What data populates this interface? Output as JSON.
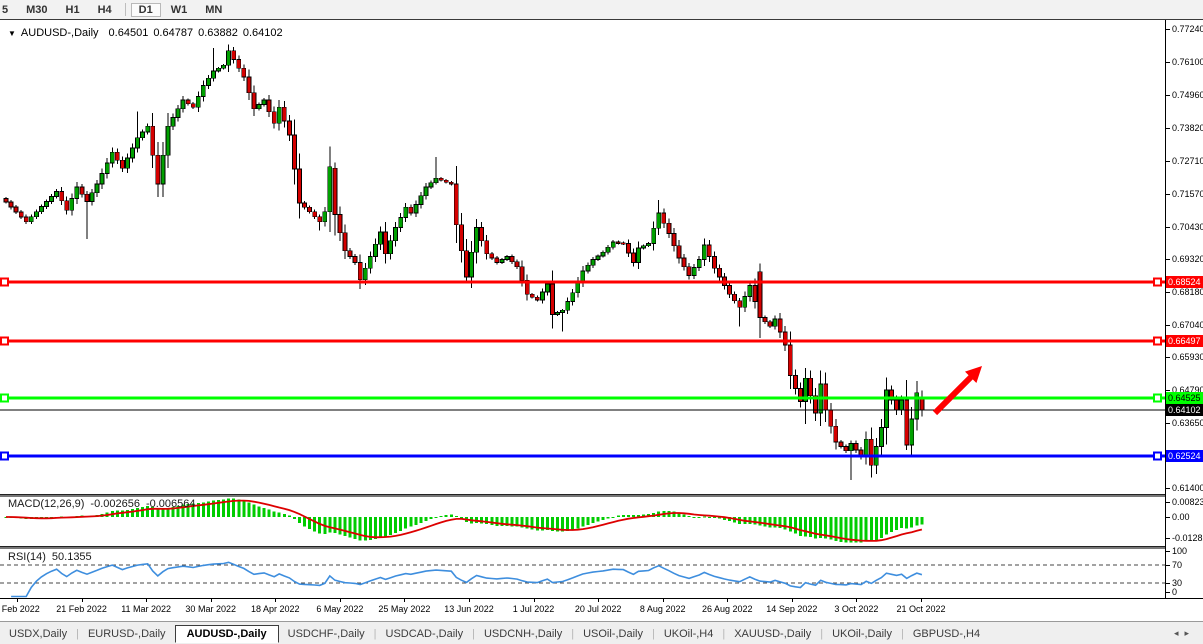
{
  "toolbar": {
    "timeframes": [
      {
        "label": "5",
        "active": false,
        "cut": true
      },
      {
        "label": "M30",
        "active": false
      },
      {
        "label": "H1",
        "active": false
      },
      {
        "label": "H4",
        "active": false
      },
      {
        "label": "D1",
        "active": true
      },
      {
        "label": "W1",
        "active": false
      },
      {
        "label": "MN",
        "active": false
      }
    ]
  },
  "chart": {
    "title_symbol": "AUDUSD-,Daily",
    "ohlc": [
      "0.64501",
      "0.64787",
      "0.63882",
      "0.64102"
    ]
  },
  "indicators": {
    "macd": {
      "label": "MACD(12,26,9)",
      "value1": "-0.002656",
      "value2": "-0.006564",
      "axis_ticks": [
        "0.00823",
        "0.00",
        "-0.01282"
      ]
    },
    "rsi": {
      "label": "RSI(14)",
      "value": "50.1355",
      "axis_ticks": [
        "100",
        "70",
        "30",
        "0"
      ],
      "levels": [
        70,
        30
      ]
    }
  },
  "price_axis": {
    "ticks": [
      "0.77240",
      "0.76100",
      "0.74960",
      "0.73820",
      "0.72710",
      "0.71570",
      "0.70430",
      "0.69320",
      "0.68180",
      "0.67040",
      "0.65930",
      "0.64790",
      "0.63650",
      "0.61400"
    ]
  },
  "date_axis": {
    "labels": [
      "2 Feb 2022",
      "21 Feb 2022",
      "11 Mar 2022",
      "30 Mar 2022",
      "18 Apr 2022",
      "6 May 2022",
      "25 May 2022",
      "13 Jun 2022",
      "1 Jul 2022",
      "20 Jul 2022",
      "8 Aug 2022",
      "26 Aug 2022",
      "14 Sep 2022",
      "3 Oct 2022",
      "21 Oct 2022"
    ]
  },
  "tabs": {
    "items": [
      {
        "label": "USDX,Daily",
        "active": false
      },
      {
        "label": "EURUSD-,Daily",
        "active": false
      },
      {
        "label": "AUDUSD-,Daily",
        "active": true
      },
      {
        "label": "USDCHF-,Daily",
        "active": false
      },
      {
        "label": "USDCAD-,Daily",
        "active": false
      },
      {
        "label": "USDCNH-,Daily",
        "active": false
      },
      {
        "label": "USOil-,Daily",
        "active": false
      },
      {
        "label": "UKOil-,H4",
        "active": false
      },
      {
        "label": "XAUUSD-,Daily",
        "active": false
      },
      {
        "label": "UKOil-,Daily",
        "active": false
      },
      {
        "label": "GBPUSD-,H4",
        "active": false
      }
    ],
    "nav_left": "◂",
    "nav_right": "▸"
  },
  "colors": {
    "bull": "#00a000",
    "bear": "#d40000",
    "wick": "#000000",
    "line_red": "#ff0000",
    "line_green": "#00ff00",
    "line_blue": "#0000ff",
    "current_price_line": "#000000",
    "macd_hist": "#00cc00",
    "macd_signal": "#dd0000",
    "rsi_line": "#3e8ede",
    "arrow": "#ff0000",
    "badge_text_on_red": "#ffffff",
    "badge_text_on_green": "#000000",
    "badge_text_on_blue": "#ffffff",
    "badge_text_on_black": "#ffffff"
  },
  "chart_data": {
    "type": "candlestick",
    "symbol": "AUDUSD-",
    "timeframe": "Daily",
    "title": "AUDUSD-,Daily",
    "last_candle": {
      "open": 0.64501,
      "high": 0.64787,
      "low": 0.63882,
      "close": 0.64102
    },
    "current_price": "0.64102",
    "horizontal_lines": [
      {
        "price": "0.68524",
        "color": "#ff0000",
        "role": "resistance"
      },
      {
        "price": "0.66497",
        "color": "#ff0000",
        "role": "resistance"
      },
      {
        "price": "0.64525",
        "color": "#00ff00",
        "role": "support-resistance"
      },
      {
        "price": "0.62524",
        "color": "#0000ff",
        "role": "support"
      }
    ],
    "annotation": {
      "type": "arrow-up-right",
      "color": "#ff0000"
    },
    "y_range": [
      0.614,
      0.7724
    ],
    "x_range": [
      "2 Feb 2022",
      "21 Oct 2022"
    ],
    "num_candles": 182,
    "price_path_swings": [
      [
        0,
        0.7128
      ],
      [
        4,
        0.706
      ],
      [
        8,
        0.713
      ],
      [
        10,
        0.7165
      ],
      [
        12,
        0.71
      ],
      [
        14,
        0.718
      ],
      [
        16,
        0.713,
        0.7
      ],
      [
        18,
        0.719
      ],
      [
        21,
        0.73
      ],
      [
        23,
        0.7245
      ],
      [
        26,
        0.735,
        null,
        0.744
      ],
      [
        28,
        0.739
      ],
      [
        30,
        0.719
      ],
      [
        32,
        0.739
      ],
      [
        35,
        0.748
      ],
      [
        37,
        0.7455
      ],
      [
        39,
        0.753
      ],
      [
        41,
        0.758,
        null,
        0.766
      ],
      [
        43,
        0.76
      ],
      [
        44,
        0.765
      ],
      [
        47,
        0.756
      ],
      [
        49,
        0.745
      ],
      [
        51,
        0.748
      ],
      [
        53,
        0.74
      ],
      [
        54,
        0.7455
      ],
      [
        56,
        0.736
      ],
      [
        58,
        0.7125
      ],
      [
        60,
        0.7095
      ],
      [
        62,
        0.706,
        0.703
      ],
      [
        63,
        0.7095
      ],
      [
        64,
        0.725
      ],
      [
        65,
        0.7085,
        null,
        0.7265,
        0.7245
      ],
      [
        67,
        0.696
      ],
      [
        69,
        0.692
      ],
      [
        70,
        0.686,
        0.6829
      ],
      [
        72,
        0.694
      ],
      [
        74,
        0.7025
      ],
      [
        75,
        0.695
      ],
      [
        77,
        0.704
      ],
      [
        79,
        0.711
      ],
      [
        80,
        0.709
      ],
      [
        83,
        0.718
      ],
      [
        85,
        0.721,
        null,
        0.7283
      ],
      [
        88,
        0.719
      ],
      [
        89,
        0.705
      ],
      [
        91,
        0.687,
        0.685
      ],
      [
        93,
        0.704,
        null,
        0.7069
      ],
      [
        95,
        0.695
      ],
      [
        97,
        0.692
      ],
      [
        99,
        0.694
      ],
      [
        101,
        0.6905
      ],
      [
        103,
        0.681
      ],
      [
        105,
        0.679
      ],
      [
        107,
        0.6845
      ],
      [
        108,
        0.674
      ],
      [
        110,
        0.6755,
        0.6681
      ],
      [
        112,
        0.6815
      ],
      [
        114,
        0.689
      ],
      [
        116,
        0.693
      ],
      [
        118,
        0.6955
      ],
      [
        120,
        0.699
      ],
      [
        122,
        0.6985
      ],
      [
        124,
        0.692
      ],
      [
        125,
        0.697
      ],
      [
        127,
        0.6985
      ],
      [
        129,
        0.709,
        null,
        0.7136
      ],
      [
        131,
        0.702
      ],
      [
        133,
        0.6935
      ],
      [
        135,
        0.6875
      ],
      [
        137,
        0.693
      ],
      [
        138,
        0.698
      ],
      [
        140,
        0.69
      ],
      [
        142,
        0.684
      ],
      [
        143,
        0.681
      ],
      [
        145,
        0.6765,
        0.6699
      ],
      [
        147,
        0.684
      ],
      [
        149,
        0.673,
        null,
        0.6916,
        0.6888
      ],
      [
        151,
        0.67
      ],
      [
        152,
        0.6725
      ],
      [
        154,
        0.6635
      ],
      [
        155,
        0.653
      ],
      [
        157,
        0.644
      ],
      [
        158,
        0.652,
        0.6363
      ],
      [
        160,
        0.64
      ],
      [
        161,
        0.65,
        null,
        0.6547
      ],
      [
        162,
        0.641
      ],
      [
        164,
        0.63
      ],
      [
        166,
        0.627
      ],
      [
        167,
        0.6295,
        0.617
      ],
      [
        169,
        0.625
      ],
      [
        170,
        0.631
      ],
      [
        171,
        0.622,
        0.6178
      ],
      [
        173,
        0.635
      ],
      [
        174,
        0.648,
        null,
        0.6523
      ],
      [
        176,
        0.641
      ],
      [
        177,
        0.6445
      ],
      [
        178,
        0.629,
        0.6272
      ],
      [
        180,
        0.647
      ],
      [
        181,
        0.64102,
        0.63882,
        0.64787,
        0.64501
      ]
    ]
  }
}
